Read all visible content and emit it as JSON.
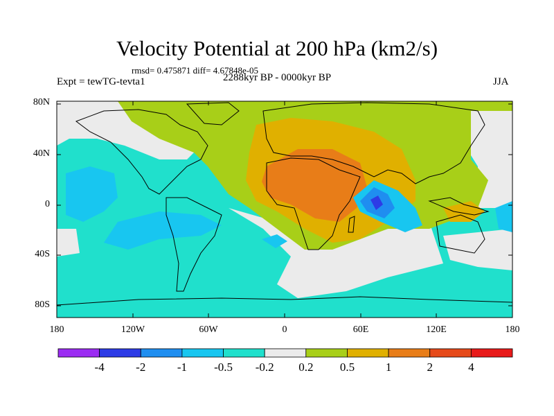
{
  "title": "Velocity Potential at 200 hPa (km2/s)",
  "stats": "rmsd= 0.475871 diff= 4.67848e-05",
  "expt": "Expt = tewTG-tevta1",
  "period": "2288kyr BP - 0000kyr BP",
  "season": "JJA",
  "axes": {
    "y_ticks": [
      "80N",
      "40N",
      "0",
      "40S",
      "80S"
    ],
    "x_ticks": [
      "180",
      "120W",
      "60W",
      "0",
      "60E",
      "120E",
      "180"
    ]
  },
  "colorbar": {
    "colors": [
      "#9b2cf2",
      "#2d3be6",
      "#1f8ef0",
      "#18c6f0",
      "#20e0cc",
      "#ebebeb",
      "#a8cf18",
      "#e0b000",
      "#e87d18",
      "#e64a1a",
      "#e81a1a"
    ],
    "labels": [
      "-4",
      "-2",
      "-1",
      "-0.5",
      "-0.2",
      "0.2",
      "0.5",
      "1",
      "2",
      "4"
    ]
  }
}
